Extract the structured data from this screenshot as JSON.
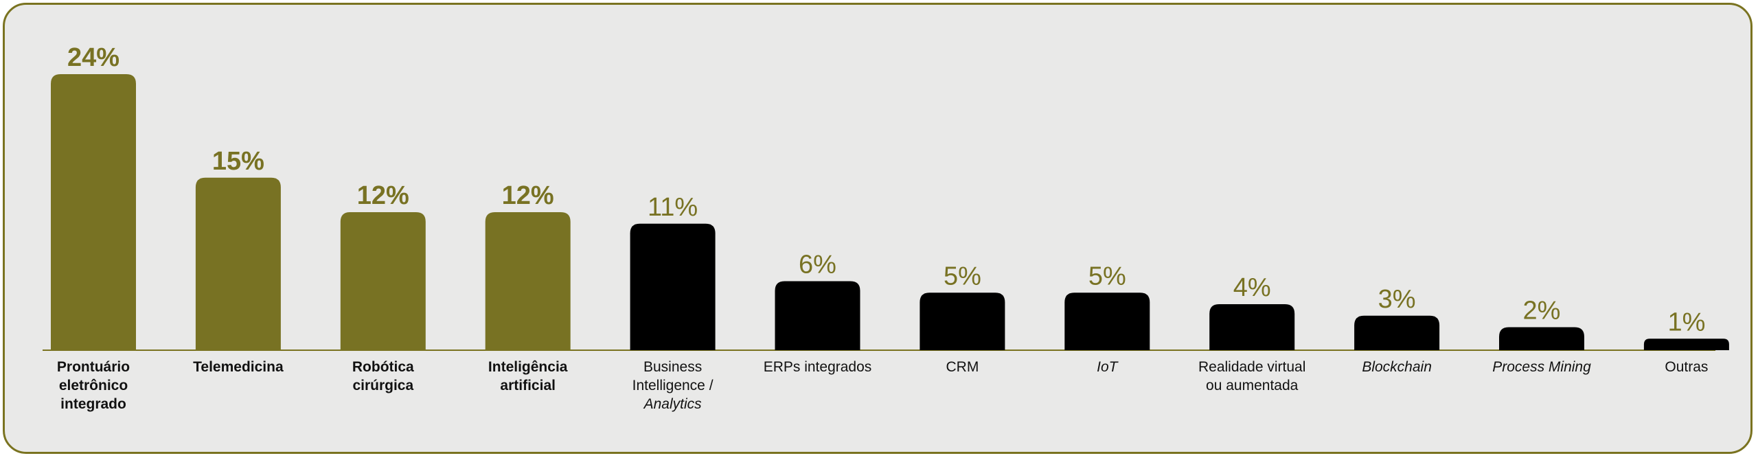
{
  "chart_data": {
    "type": "bar",
    "categories": [
      "Prontuário eletrônico integrado",
      "Telemedicina",
      "Robótica cirúrgica",
      "Inteligência artificial",
      "Business Intelligence / Analytics",
      "ERPs integrados",
      "CRM",
      "IoT",
      "Realidade virtual ou aumentada",
      "Blockchain",
      "Process Mining",
      "Outras"
    ],
    "values": [
      24,
      15,
      12,
      12,
      11,
      6,
      5,
      5,
      4,
      3,
      2,
      1
    ],
    "value_labels": [
      "24%",
      "15%",
      "12%",
      "12%",
      "11%",
      "6%",
      "5%",
      "5%",
      "4%",
      "3%",
      "2%",
      "1%"
    ],
    "label_lines": [
      [
        {
          "t": "Prontuário",
          "i": false
        },
        {
          "t": "eletrônico",
          "i": false
        },
        {
          "t": "integrado",
          "i": false
        }
      ],
      [
        {
          "t": "Telemedicina",
          "i": false
        }
      ],
      [
        {
          "t": "Robótica",
          "i": false
        },
        {
          "t": "cirúrgica",
          "i": false
        }
      ],
      [
        {
          "t": "Inteligência",
          "i": false
        },
        {
          "t": "artificial",
          "i": false
        }
      ],
      [
        {
          "t": "Business",
          "i": false
        },
        {
          "t": "Intelligence /",
          "i": false
        },
        {
          "t": "Analytics",
          "i": true
        }
      ],
      [
        {
          "t": "ERPs integrados",
          "i": false
        }
      ],
      [
        {
          "t": "CRM",
          "i": false
        }
      ],
      [
        {
          "t": "IoT",
          "i": true
        }
      ],
      [
        {
          "t": "Realidade virtual",
          "i": false
        },
        {
          "t": "ou aumentada",
          "i": false
        }
      ],
      [
        {
          "t": "Blockchain",
          "i": true
        }
      ],
      [
        {
          "t": "Process Mining",
          "i": true
        }
      ],
      [
        {
          "t": "Outras",
          "i": false
        }
      ]
    ],
    "highlight_count": 4,
    "colors": {
      "highlight": "#787223",
      "default": "#000000",
      "value_text": "#787223",
      "frame_border": "#7a7320",
      "background": "#e9e9e8",
      "baseline": "#7a7320"
    },
    "ylim": [
      0,
      24
    ]
  }
}
